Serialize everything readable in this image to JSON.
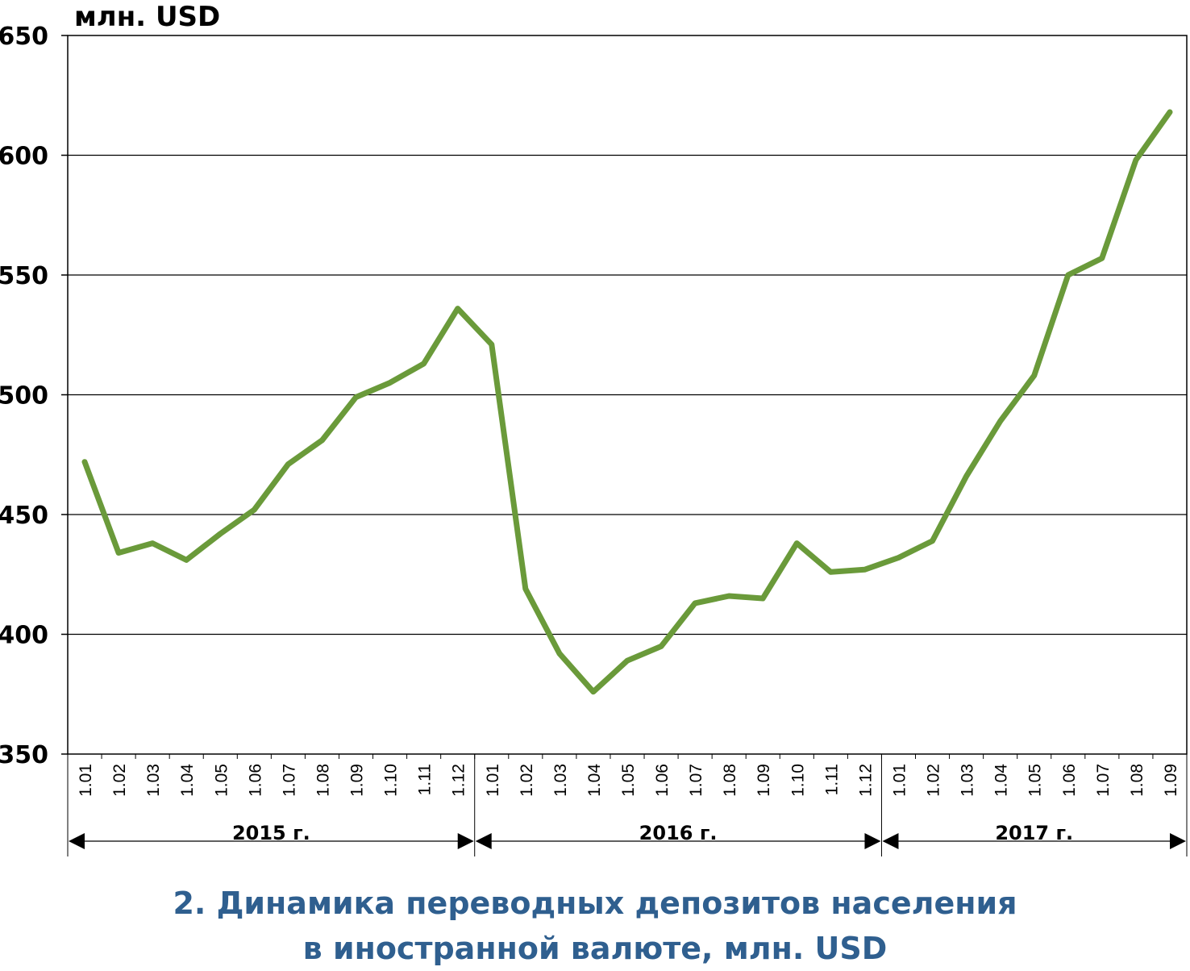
{
  "caption": {
    "line1": "2. Динамика переводных депозитов населения",
    "line2": "в иностранной валюте, млн. USD"
  },
  "chart_data": {
    "type": "line",
    "title": "2. Динамика переводных депозитов населения в иностранной валюте, млн. USD",
    "ylabel": "млн. USD",
    "xlabel": "",
    "ylim": [
      350,
      650
    ],
    "yticks": [
      "350",
      "400",
      "450",
      "500",
      "550",
      "600",
      "650"
    ],
    "grid": true,
    "legend": "none",
    "line_color": "#6a9a3a",
    "categories": [
      "1.01",
      "1.02",
      "1.03",
      "1.04",
      "1.05",
      "1.06",
      "1.07",
      "1.08",
      "1.09",
      "1.10",
      "1.11",
      "1.12",
      "1.01",
      "1.02",
      "1.03",
      "1.04",
      "1.05",
      "1.06",
      "1.07",
      "1.08",
      "1.09",
      "1.10",
      "1.11",
      "1.12",
      "1.01",
      "1.02",
      "1.03",
      "1.04",
      "1.05",
      "1.06",
      "1.07",
      "1.08",
      "1.09"
    ],
    "groups": [
      {
        "label": "2015 г.",
        "count": 12
      },
      {
        "label": "2016 г.",
        "count": 12
      },
      {
        "label": "2017 г.",
        "count": 9
      }
    ],
    "series": [
      {
        "values": [
          472,
          434,
          438,
          431,
          442,
          452,
          471,
          481,
          499,
          505,
          513,
          536,
          521,
          419,
          392,
          376,
          389,
          395,
          413,
          416,
          415,
          438,
          426,
          427,
          432,
          439,
          466,
          489,
          508,
          550,
          557,
          598,
          618
        ]
      }
    ]
  }
}
